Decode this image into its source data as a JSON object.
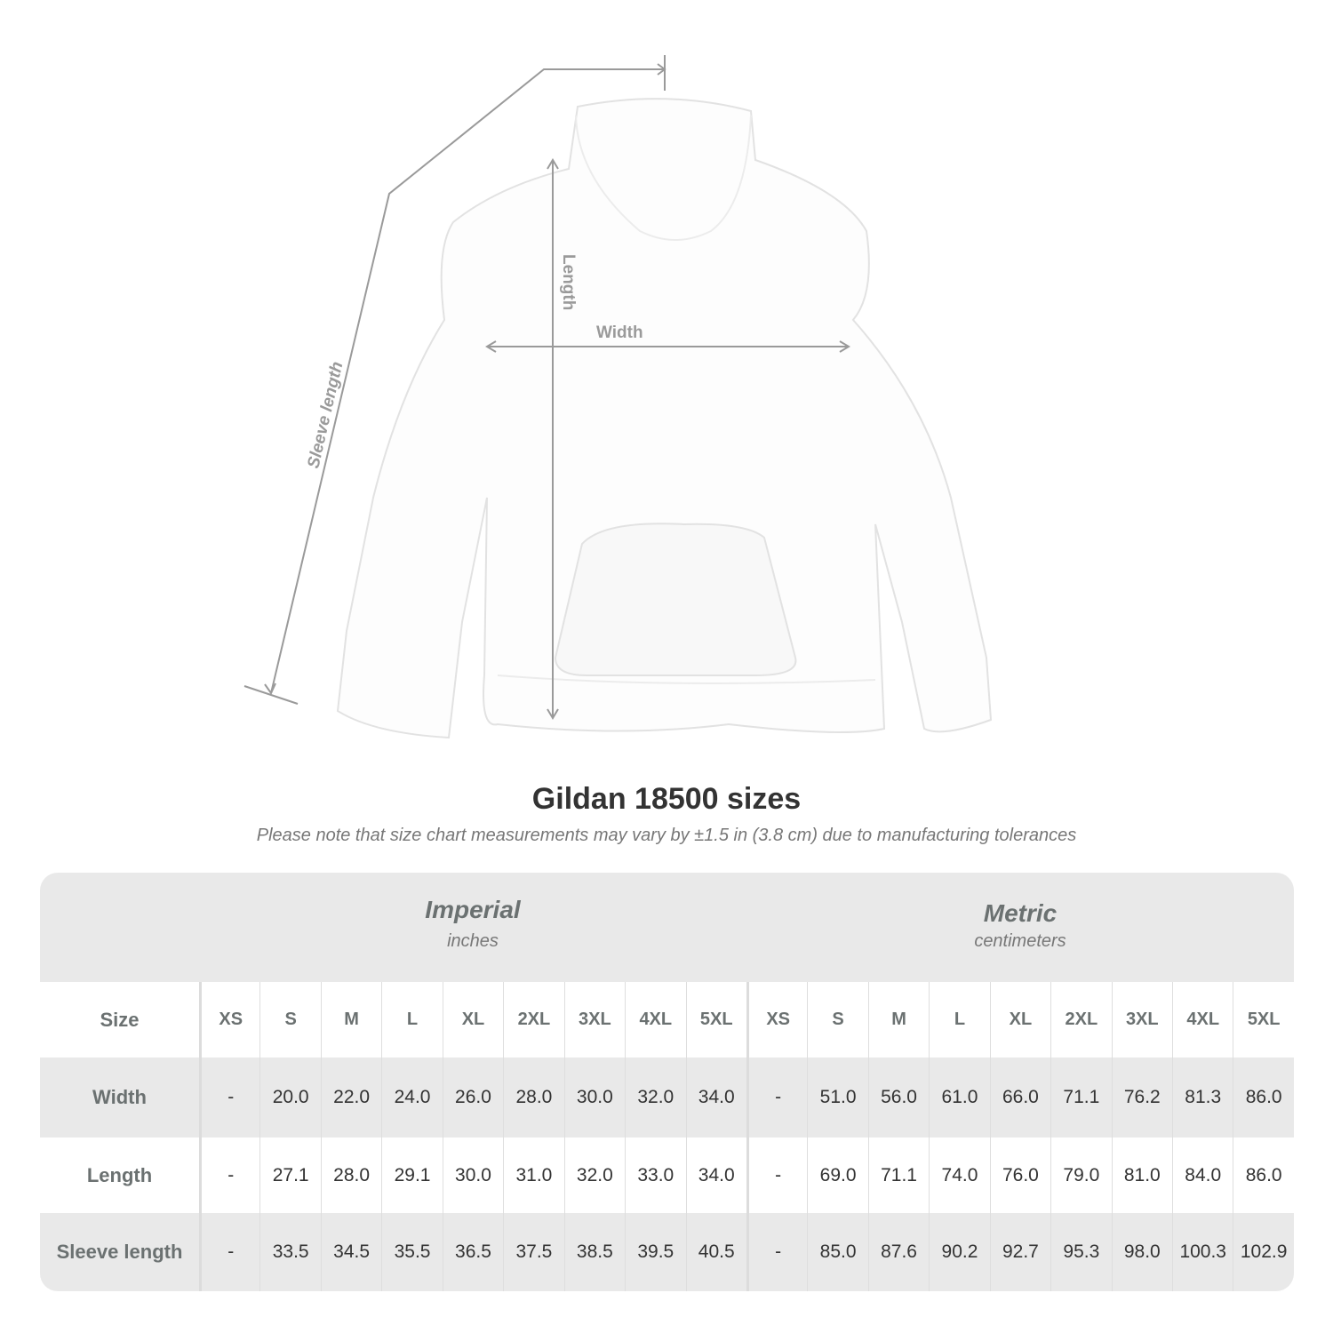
{
  "diagram": {
    "labels": {
      "sleeve": "Sleeve length",
      "length": "Length",
      "width": "Width"
    },
    "colors": {
      "garment": "#ffffff",
      "measure_lines": "#9a9a9a"
    }
  },
  "title": "Gildan 18500 sizes",
  "note": "Please note that size chart measurements may vary by ±1.5 in (3.8 cm) due to manufacturing tolerances",
  "table": {
    "imperial": {
      "name": "Imperial",
      "unit": "inches"
    },
    "metric": {
      "name": "Metric",
      "unit": "centimeters"
    },
    "size_label": "Size",
    "sizes": [
      "XS",
      "S",
      "M",
      "L",
      "XL",
      "2XL",
      "3XL",
      "4XL",
      "5XL"
    ],
    "rows": [
      {
        "label": "Width",
        "imperial": [
          "-",
          "20.0",
          "22.0",
          "24.0",
          "26.0",
          "28.0",
          "30.0",
          "32.0",
          "34.0"
        ],
        "metric": [
          "-",
          "51.0",
          "56.0",
          "61.0",
          "66.0",
          "71.1",
          "76.2",
          "81.3",
          "86.0"
        ]
      },
      {
        "label": "Length",
        "imperial": [
          "-",
          "27.1",
          "28.0",
          "29.1",
          "30.0",
          "31.0",
          "32.0",
          "33.0",
          "34.0"
        ],
        "metric": [
          "-",
          "69.0",
          "71.1",
          "74.0",
          "76.0",
          "79.0",
          "81.0",
          "84.0",
          "86.0"
        ]
      },
      {
        "label": "Sleeve length",
        "imperial": [
          "-",
          "33.5",
          "34.5",
          "35.5",
          "36.5",
          "37.5",
          "38.5",
          "39.5",
          "40.5"
        ],
        "metric": [
          "-",
          "85.0",
          "87.6",
          "90.2",
          "92.7",
          "95.3",
          "98.0",
          "100.3",
          "102.9"
        ]
      }
    ]
  }
}
